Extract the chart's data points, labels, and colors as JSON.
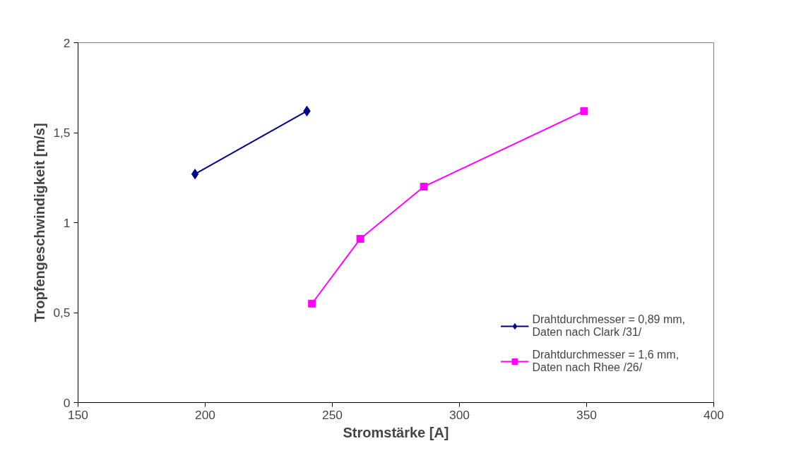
{
  "chart_data": {
    "type": "line",
    "xlabel": "Stromstärke [A]",
    "ylabel": "Tropfengeschwindigkeit [m/s]",
    "xlim": [
      150,
      400
    ],
    "xticks": [
      150,
      200,
      250,
      300,
      350,
      400
    ],
    "ylim": [
      0,
      2
    ],
    "yticks": [
      0,
      {
        "value": 0.5,
        "label": "0,5"
      },
      1,
      {
        "value": 1.5,
        "label": "1,5"
      },
      2
    ],
    "grid": false,
    "legend": "bottom right",
    "series": [
      {
        "name": "Drahtdurchmesser = 0,89 mm, Daten nach Clark /31/",
        "color": "#000080",
        "marker": "diamond",
        "x": [
          196,
          240
        ],
        "values": [
          1.27,
          1.62
        ]
      },
      {
        "name": "Drahtdurchmesser = 1,6 mm, Daten nach Rhee /26/",
        "color": "#ff00ff",
        "marker": "square",
        "x": [
          242,
          261,
          286,
          349
        ],
        "values": [
          0.55,
          0.91,
          1.2,
          1.62
        ]
      }
    ]
  }
}
